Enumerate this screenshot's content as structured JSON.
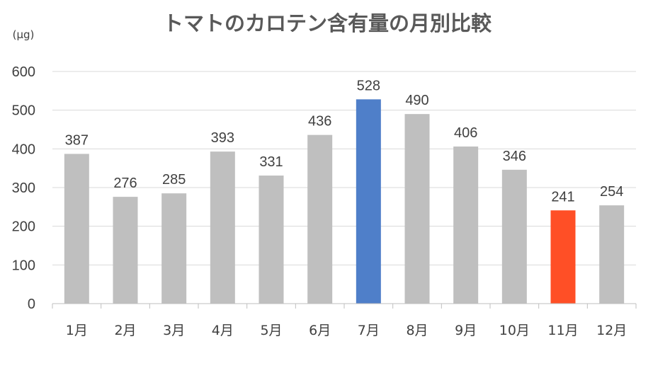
{
  "chart_data": {
    "type": "bar",
    "title": "トマトのカロテン含有量の月別比較",
    "unit_label": "(μg)",
    "categories": [
      "1月",
      "2月",
      "3月",
      "4月",
      "5月",
      "6月",
      "7月",
      "8月",
      "9月",
      "10月",
      "11月",
      "12月"
    ],
    "values": [
      387,
      276,
      285,
      393,
      331,
      436,
      528,
      490,
      406,
      346,
      241,
      254
    ],
    "ylim": [
      0,
      600
    ],
    "yticks": [
      0,
      100,
      200,
      300,
      400,
      500,
      600
    ],
    "grid": true,
    "legend": "none",
    "colors": {
      "default": "#bfbfbf",
      "highlight_max": "#4f7fc9",
      "highlight_min": "#ff4f26"
    },
    "highlights": {
      "7月": "highlight_max",
      "11月": "highlight_min"
    }
  }
}
